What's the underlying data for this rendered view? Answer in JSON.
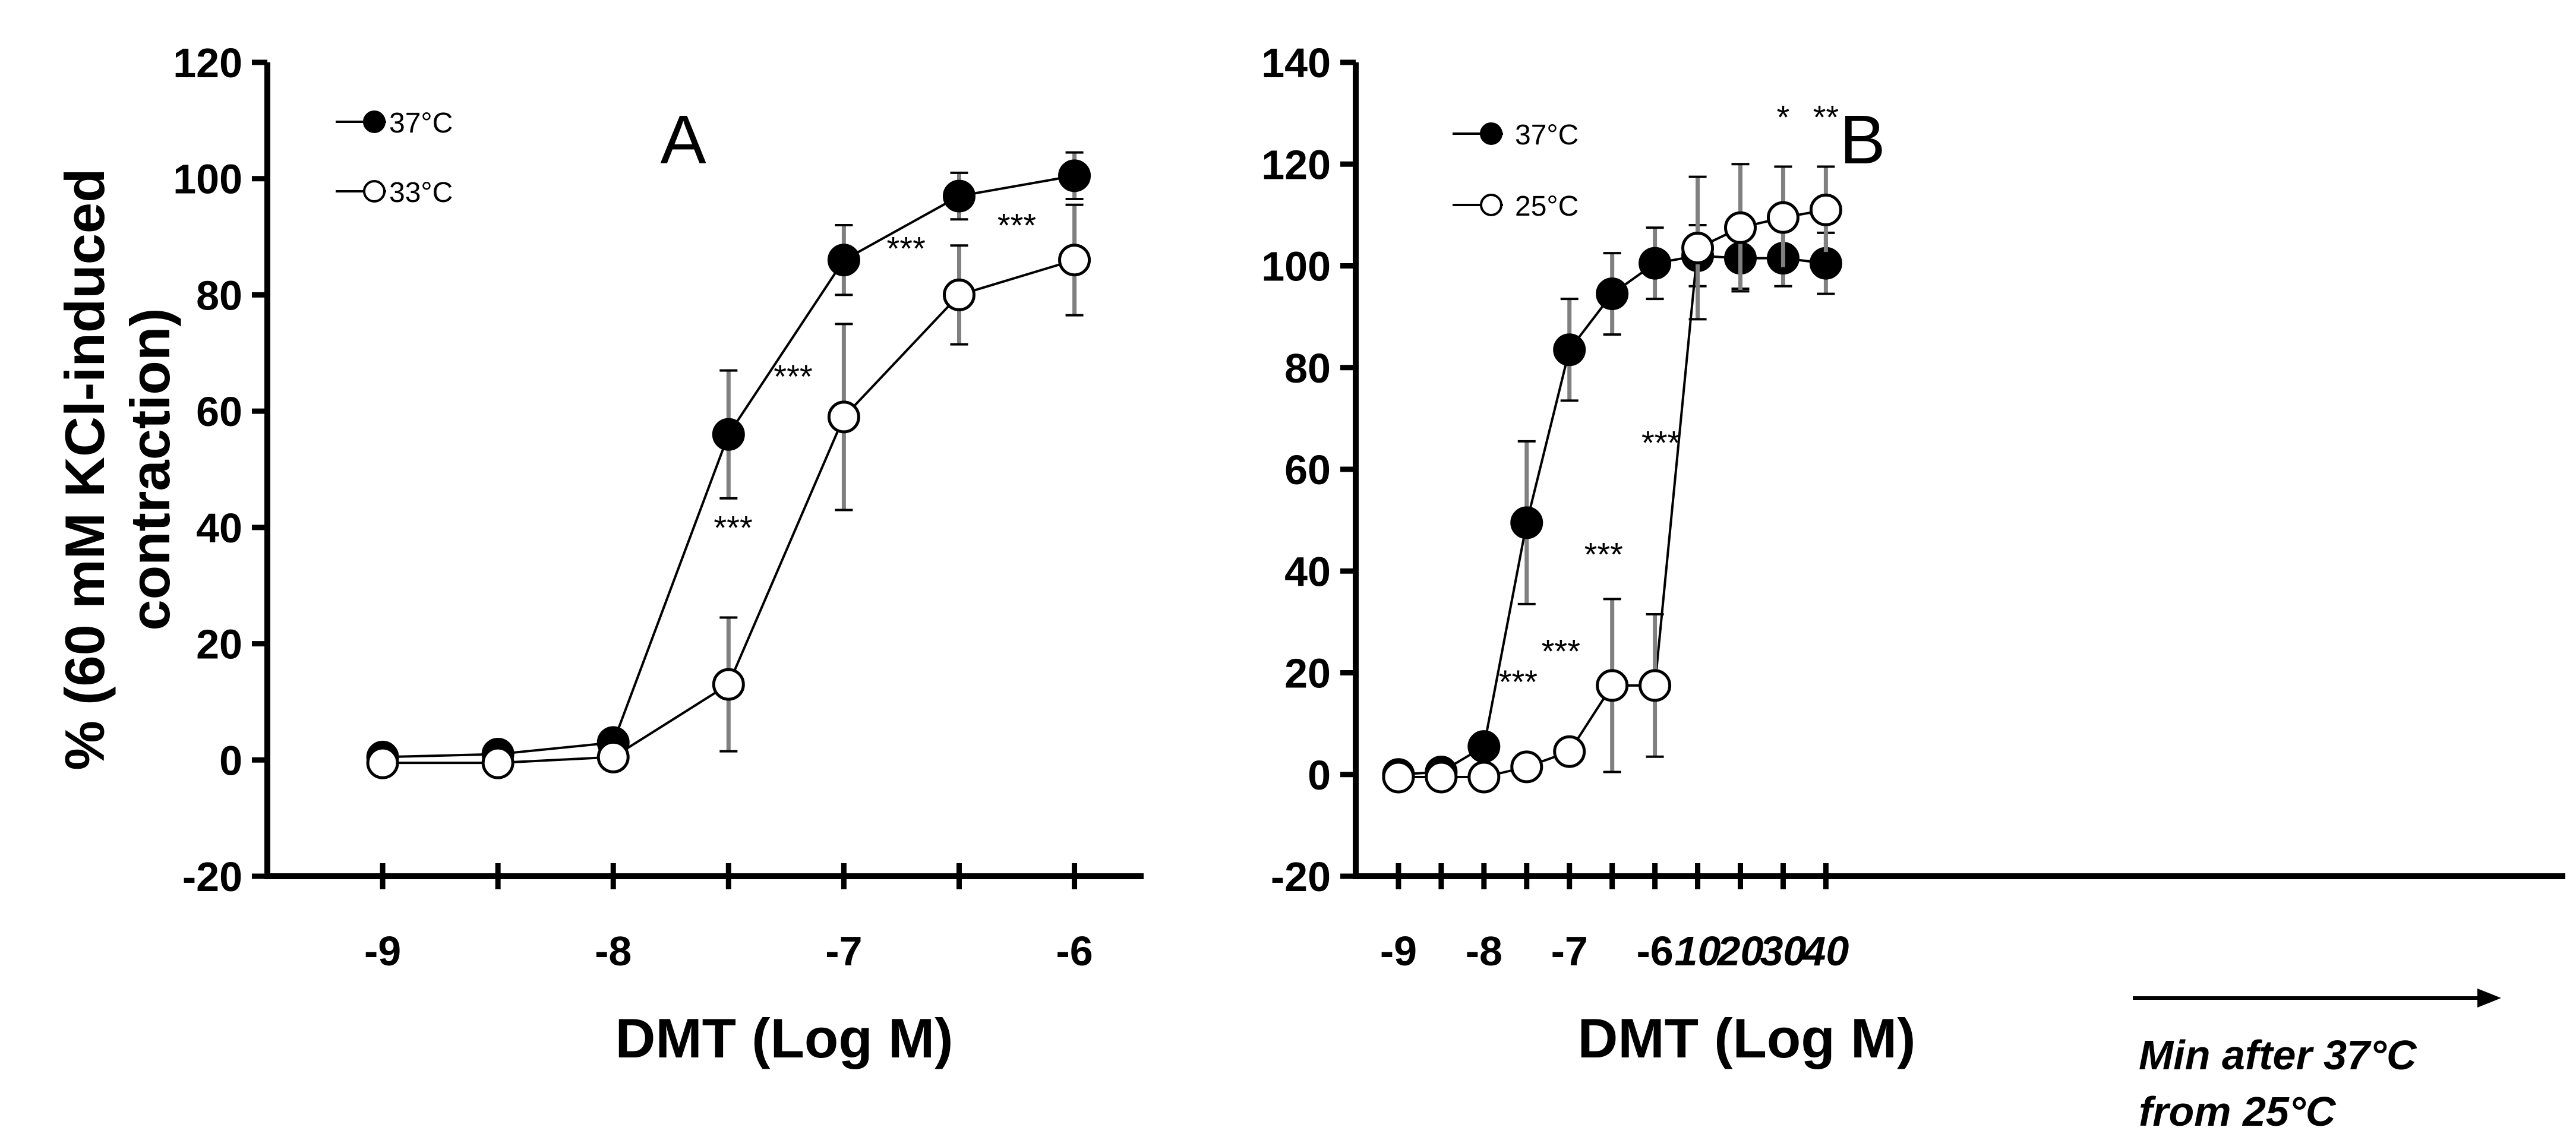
{
  "chart_data": [
    {
      "type": "line",
      "panel_label": "A",
      "xlabel": "DMT (Log M)",
      "ylabel": [
        "% (60 mM KCl-induced",
        "contraction)"
      ],
      "ylim": [
        -20,
        120
      ],
      "yticks": [
        -20,
        0,
        20,
        40,
        60,
        80,
        100,
        120
      ],
      "xlim": [
        -9.5,
        -5.7
      ],
      "x_ticks": [
        -9,
        -8.5,
        -8,
        -7.5,
        -7,
        -6.5,
        -6
      ],
      "x_tick_labels": [
        {
          "x": -9,
          "label": "-9"
        },
        {
          "x": -8,
          "label": "-8"
        },
        {
          "x": -7,
          "label": "-7"
        },
        {
          "x": -6,
          "label": "-6"
        }
      ],
      "series": [
        {
          "name": "37°C",
          "marker": "filled",
          "x": [
            -9,
            -8.5,
            -8,
            -7.5,
            -7,
            -6.5,
            -6
          ],
          "values": [
            0.5,
            1,
            3,
            56,
            86,
            97,
            100.5
          ],
          "errors": [
            0,
            0,
            0,
            11,
            6,
            4,
            4
          ]
        },
        {
          "name": "33°C",
          "marker": "open",
          "x": [
            -9,
            -8.5,
            -8,
            -7.5,
            -7,
            -6.5,
            -6
          ],
          "values": [
            -0.5,
            -0.5,
            0.5,
            13,
            59,
            80,
            86
          ],
          "errors": [
            0,
            0,
            0,
            11.5,
            16,
            8.5,
            9.5
          ]
        }
      ],
      "annotations": [
        {
          "text": "***",
          "x": -7.48,
          "y": 38
        },
        {
          "text": "***",
          "x": -7.22,
          "y": 64
        },
        {
          "text": "***",
          "x": -6.73,
          "y": 86
        },
        {
          "text": "***",
          "x": -6.25,
          "y": 90
        }
      ]
    },
    {
      "type": "line",
      "panel_label": "B",
      "xlabel": "DMT (Log M)",
      "ylim": [
        -20,
        140
      ],
      "yticks": [
        -20,
        0,
        20,
        40,
        60,
        80,
        100,
        120,
        140
      ],
      "xlim": [
        -9.5,
        4.65
      ],
      "x_ticks": [
        -9,
        -8.5,
        -8,
        -7.5,
        -7,
        -6.5,
        -6,
        -5.5,
        -5,
        -4.5,
        -4
      ],
      "x_tick_labels": [
        {
          "x": -9,
          "label": "-9",
          "italic": false
        },
        {
          "x": -8,
          "label": "-8",
          "italic": false
        },
        {
          "x": -7,
          "label": "-7",
          "italic": false
        },
        {
          "x": -6,
          "label": "-6",
          "italic": false
        },
        {
          "x": -5.5,
          "label": "10",
          "italic": true
        },
        {
          "x": -5,
          "label": "20",
          "italic": true
        },
        {
          "x": -4.5,
          "label": "30",
          "italic": true
        },
        {
          "x": -4,
          "label": "40",
          "italic": true
        }
      ],
      "time_axis_caption": [
        "Min after 37°C",
        "from 25°C"
      ],
      "series": [
        {
          "name": "37°C",
          "marker": "filled",
          "x": [
            -9,
            -8.5,
            -8,
            -7.5,
            -7,
            -6.5,
            -6,
            -5.5,
            -5,
            -4.5,
            -4
          ],
          "values": [
            0,
            0.5,
            5.5,
            49.5,
            83.5,
            94.5,
            100.5,
            102,
            101.5,
            101.5,
            100.5
          ],
          "errors": [
            0,
            0,
            0,
            16,
            10,
            8,
            7,
            6,
            6,
            5.5,
            6
          ]
        },
        {
          "name": "25°C",
          "marker": "open",
          "x": [
            -9,
            -8.5,
            -8,
            -7.5,
            -7,
            -6.5,
            -6,
            -5.5,
            -5,
            -4.5,
            -4
          ],
          "values": [
            -0.5,
            -0.5,
            -0.5,
            1.5,
            4.5,
            17.5,
            17.5,
            103.5,
            107.5,
            109.5,
            111
          ],
          "errors": [
            0,
            0,
            0,
            0,
            2.5,
            17,
            14,
            14,
            12.5,
            10,
            8.5
          ]
        }
      ],
      "annotations": [
        {
          "text": "***",
          "x": -7.6,
          "y": 16
        },
        {
          "text": "***",
          "x": -7.1,
          "y": 22
        },
        {
          "text": "***",
          "x": -6.6,
          "y": 41
        },
        {
          "text": "***",
          "x": -5.93,
          "y": 63
        },
        {
          "text": "*",
          "x": -4.5,
          "y": 127
        },
        {
          "text": "**",
          "x": -4,
          "y": 127
        }
      ]
    }
  ]
}
